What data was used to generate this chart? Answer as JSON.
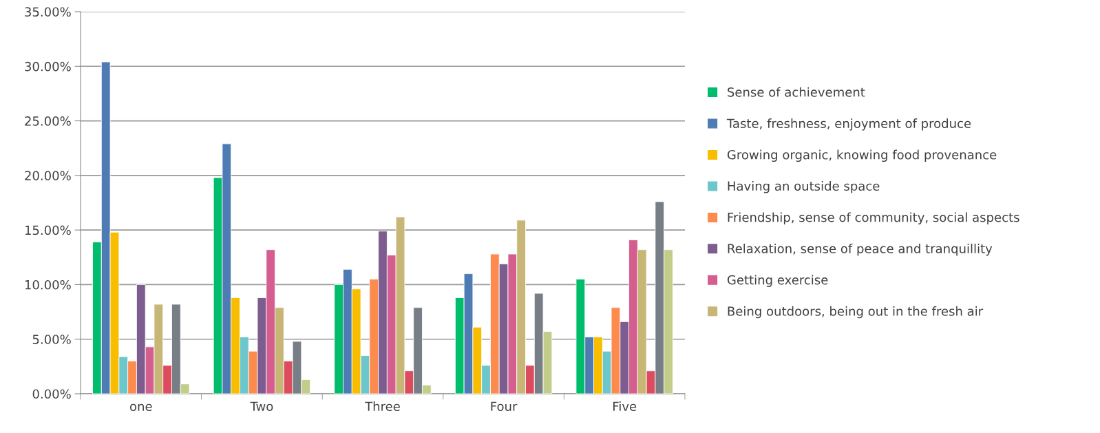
{
  "chart_data": {
    "type": "bar",
    "categories": [
      "one",
      "Two",
      "Three",
      "Four",
      "Five"
    ],
    "series": [
      {
        "name": "Sense of achievement",
        "color": "#00bd6c",
        "values": [
          13.9,
          19.8,
          10.0,
          8.8,
          10.5
        ]
      },
      {
        "name": "Taste, freshness, enjoyment of produce",
        "color": "#4f7bb5",
        "values": [
          30.4,
          22.9,
          11.4,
          11.0,
          5.2
        ]
      },
      {
        "name": "Growing organic, knowing food provenance",
        "color": "#f9bd00",
        "values": [
          14.8,
          8.8,
          9.6,
          6.1,
          5.2
        ]
      },
      {
        "name": "Having an outside space",
        "color": "#6cc7cc",
        "values": [
          3.4,
          5.2,
          3.5,
          2.6,
          3.9
        ]
      },
      {
        "name": "Friendship, sense of community, social aspects",
        "color": "#fd8b4e",
        "values": [
          3.0,
          3.9,
          10.5,
          12.8,
          7.9
        ]
      },
      {
        "name": "Relaxation, sense of peace and tranquillity",
        "color": "#7d5c8f",
        "values": [
          10.0,
          8.8,
          14.9,
          11.9,
          6.6
        ]
      },
      {
        "name": "Getting exercise",
        "color": "#d45e8e",
        "values": [
          4.3,
          13.2,
          12.7,
          12.8,
          14.1
        ]
      },
      {
        "name": "Being outdoors, being out in the fresh air",
        "color": "#c8b677",
        "values": [
          8.2,
          7.9,
          16.2,
          15.9,
          13.2
        ]
      },
      {
        "color": "#dc4c5e",
        "values": [
          2.6,
          3.0,
          2.1,
          2.6,
          2.1
        ]
      },
      {
        "color": "#787e85",
        "values": [
          8.2,
          4.8,
          7.9,
          9.2,
          17.6
        ]
      },
      {
        "color": "#c2cd8a",
        "values": [
          0.9,
          1.3,
          0.8,
          5.7,
          13.2
        ]
      }
    ],
    "ylim": [
      0,
      35
    ],
    "yticks": [
      {
        "value": 0,
        "label": "0.00%"
      },
      {
        "value": 5,
        "label": "5.00%"
      },
      {
        "value": 10,
        "label": "10.00%"
      },
      {
        "value": 15,
        "label": "15.00%"
      },
      {
        "value": 20,
        "label": "20.00%"
      },
      {
        "value": 25,
        "label": "25.00%"
      },
      {
        "value": 30,
        "label": "30.00%"
      },
      {
        "value": 35,
        "label": "35.00%"
      }
    ],
    "grid": "y",
    "legend": "right"
  }
}
